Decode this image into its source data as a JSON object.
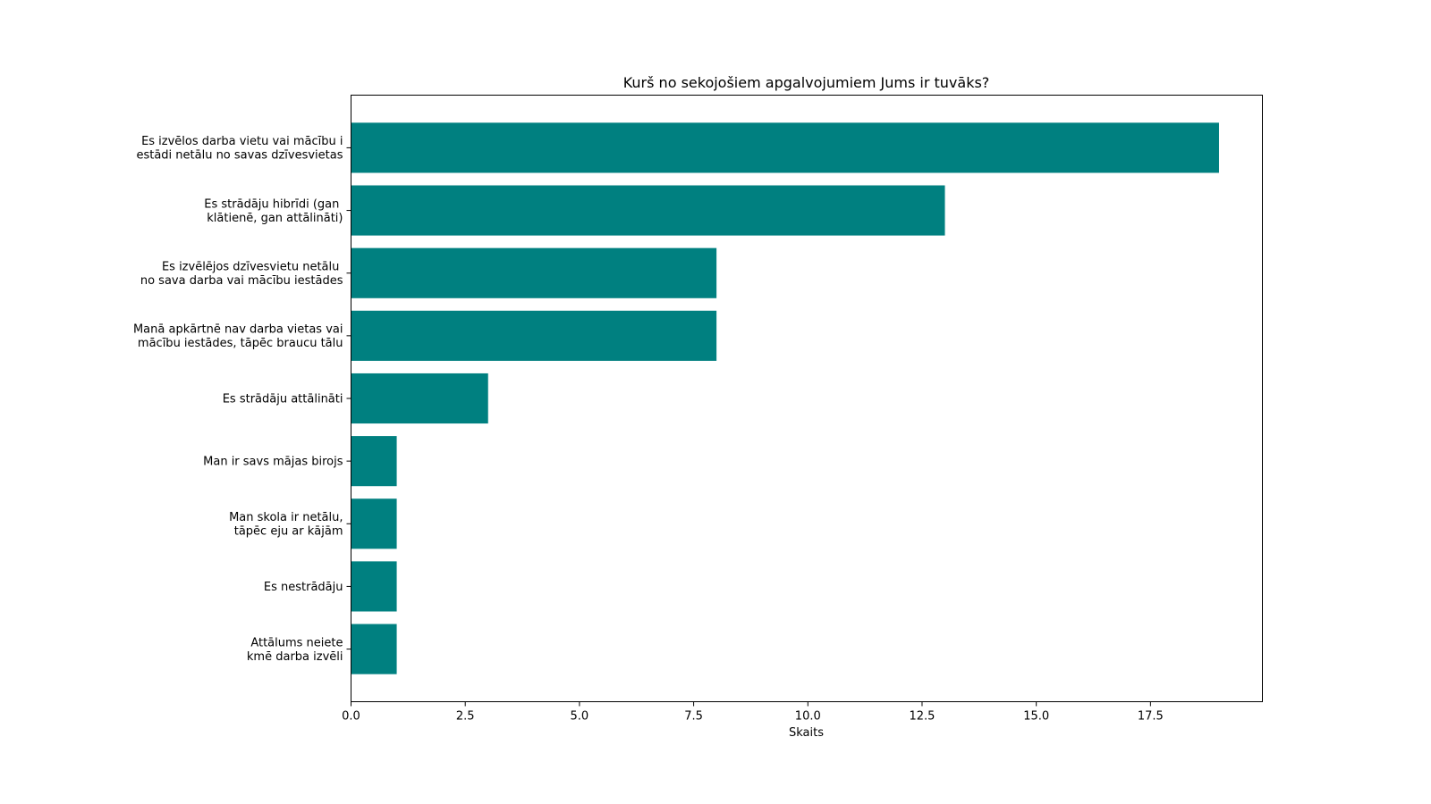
{
  "chart_data": {
    "type": "bar",
    "orientation": "horizontal",
    "title": "Kurš no sekojošiem apgalvojumiem Jums ir tuvāks?",
    "xlabel": "Skaits",
    "ylabel": "",
    "xlim": [
      0,
      19.95
    ],
    "xticks": [
      0.0,
      2.5,
      5.0,
      7.5,
      10.0,
      12.5,
      15.0,
      17.5
    ],
    "xtick_labels": [
      "0.0",
      "2.5",
      "5.0",
      "7.5",
      "10.0",
      "12.5",
      "15.0",
      "17.5"
    ],
    "grid": false,
    "bar_color": "#008080",
    "categories": [
      "Es izvēlos darba vietu vai mācību i\nestādi netālu no savas dzīvesvietas",
      "Es strādāju hibrīdi (gan \nklātienē, gan attālināti)",
      "Es izvēlējos dzīvesvietu netālu \nno sava darba vai mācību iestādes",
      "Manā apkārtnē nav darba vietas vai\nmācību iestādes, tāpēc braucu tālu",
      "Es strādāju attālināti",
      "Man ir savs mājas birojs",
      "Man skola ir netālu,\ntāpēc eju ar kājām ",
      "Es nestrādāju",
      "Attālums neiete\nkmē darba izvēli"
    ],
    "values": [
      19,
      13,
      8,
      8,
      3,
      1,
      1,
      1,
      1
    ]
  }
}
